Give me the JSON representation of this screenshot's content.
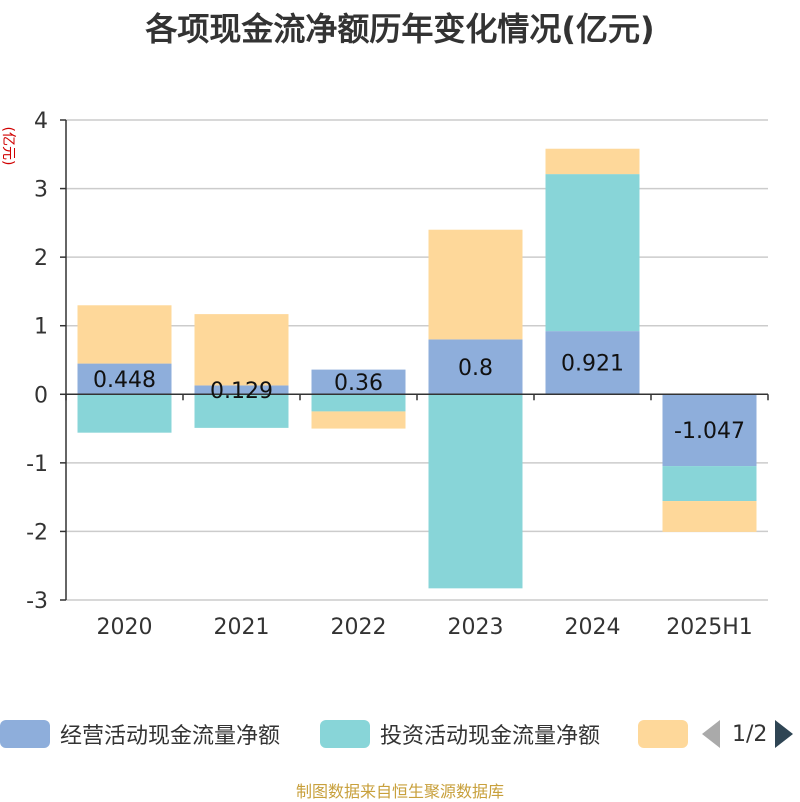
{
  "title": "各项现金流净额历年变化情况(亿元)",
  "source_note": "制图数据来自恒生聚源数据库",
  "legend": {
    "items": [
      {
        "label": "经营活动现金流量净额",
        "color": "#8eaedb"
      },
      {
        "label": "投资活动现金流量净额",
        "color": "#88d5d8"
      },
      {
        "label": "",
        "color": "#fed89a"
      }
    ],
    "page_text": "1/2"
  },
  "chart_data": {
    "type": "bar",
    "stacked": true,
    "ylabel": "(亿元)",
    "ylim": [
      -3,
      4
    ],
    "yticks": [
      4,
      3,
      2,
      1,
      0,
      -1,
      -2,
      -3
    ],
    "categories": [
      "2020",
      "2021",
      "2022",
      "2023",
      "2024",
      "2025H1"
    ],
    "series": [
      {
        "name": "经营活动现金流量净额",
        "color": "#8eaedb",
        "values": [
          0.448,
          0.129,
          0.36,
          0.8,
          0.921,
          -1.047
        ],
        "labels": [
          "0.448",
          "0.129",
          "0.36",
          "0.8",
          "0.921",
          "-1.047"
        ]
      },
      {
        "name": "投资活动现金流量净额",
        "color": "#88d5d8",
        "values": [
          -0.56,
          -0.49,
          -0.25,
          -2.83,
          2.29,
          -0.51
        ]
      },
      {
        "name": "",
        "color": "#fed89a",
        "values": [
          0.85,
          1.04,
          -0.25,
          1.6,
          0.37,
          -0.45
        ]
      }
    ]
  }
}
